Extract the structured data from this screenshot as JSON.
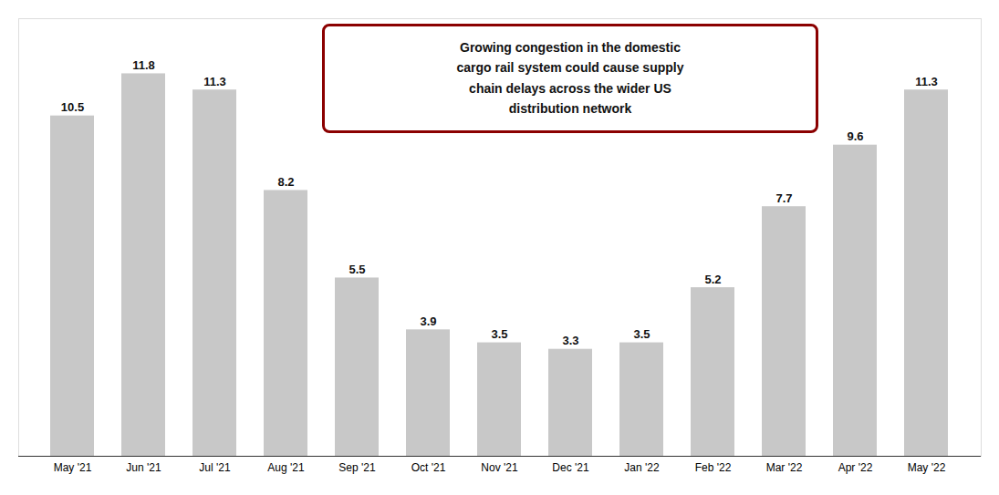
{
  "chart_data": {
    "type": "bar",
    "categories": [
      "May '21",
      "Jun '21",
      "Jul '21",
      "Aug '21",
      "Sep '21",
      "Oct '21",
      "Nov '21",
      "Dec '21",
      "Jan '22",
      "Feb '22",
      "Mar '22",
      "Apr '22",
      "May '22"
    ],
    "values": [
      10.5,
      11.8,
      11.3,
      8.2,
      5.5,
      3.9,
      3.5,
      3.3,
      3.5,
      5.2,
      7.7,
      9.6,
      11.3
    ],
    "color": "#c8c8c8",
    "ylim": [
      0,
      13.5
    ],
    "tick_labels": "x",
    "data_labels": true,
    "annotations": [
      {
        "text": "Growing congestion in the domestic\ncargo rail system could cause supply\nchain delays across the wider US\ndistribution network",
        "color": "#8b0000"
      }
    ]
  }
}
